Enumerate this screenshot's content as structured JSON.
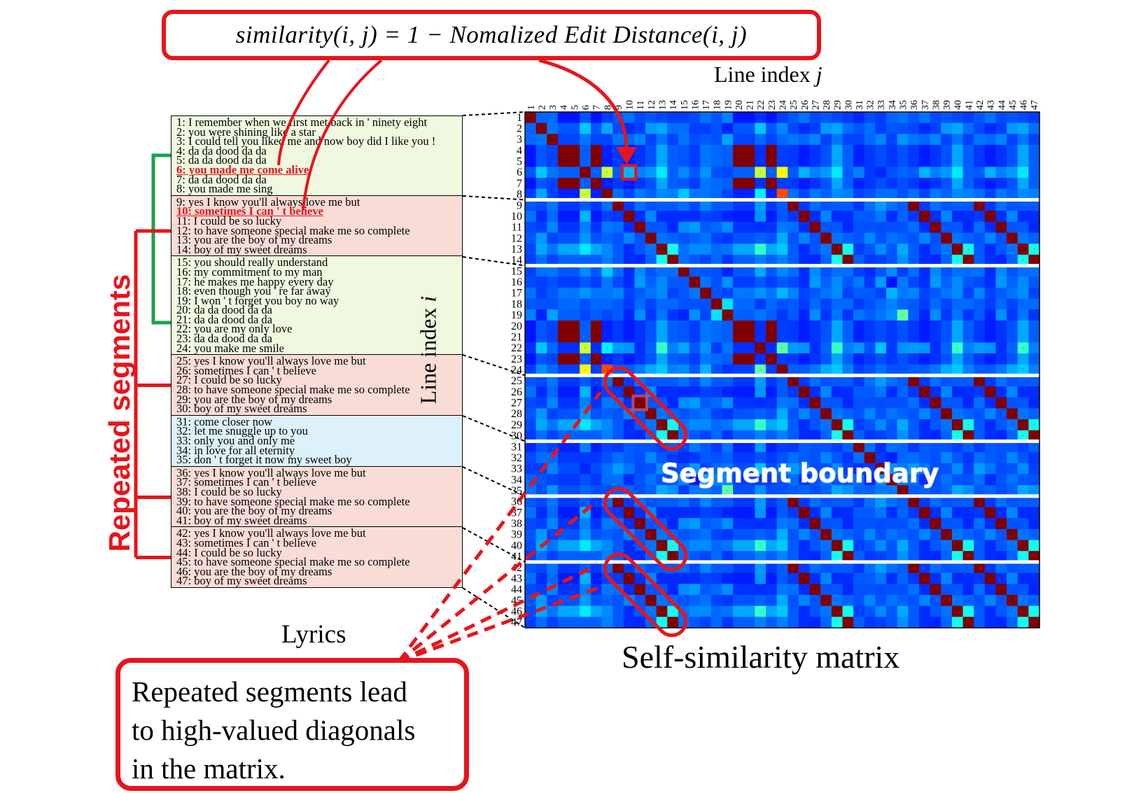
{
  "formula": "similarity(i, j) = 1 − Nomalized Edit Distance(i, j)",
  "col_axis": {
    "label": "Line index ",
    "var": "j"
  },
  "row_axis": {
    "label": "Line index ",
    "var": "i"
  },
  "lyrics_title": "Lyrics",
  "matrix_title": "Self-similarity matrix",
  "repeated_label": "Repeated segments",
  "boundary_label": "Segment boundary",
  "note_lines": [
    "Repeated segments lead",
    "to high-valued diagonals",
    "in the matrix."
  ],
  "colors": {
    "accent": "#e8141b",
    "bracket_green": "#1aa34a"
  },
  "segments": [
    {
      "bg": "#eef9df",
      "lines": [
        {
          "text": "1: I remember when we first met back in ' ninety eight"
        },
        {
          "text": "2: you were shining like a star"
        },
        {
          "text": "3: I could tell you liked me and now boy did I like you !"
        },
        {
          "text": "4: da da dood da da"
        },
        {
          "text": "5: da da dood da da"
        },
        {
          "text": "6: you made me come alive",
          "highlight": true
        },
        {
          "text": "7: da da dood da da"
        },
        {
          "text": "8: you made me sing"
        }
      ]
    },
    {
      "bg": "#fadcd6",
      "lines": [
        {
          "text": "9: yes I know you'll always love me but"
        },
        {
          "text": "10: sometimes I can ' t believe",
          "highlight": true
        },
        {
          "text": "11: I could be so lucky"
        },
        {
          "text": "12: to have someone special make me so complete"
        },
        {
          "text": "13: you are the boy of my dreams"
        },
        {
          "text": "14: boy of my sweet dreams"
        }
      ]
    },
    {
      "bg": "#eef9df",
      "lines": [
        {
          "text": "15: you should really understand"
        },
        {
          "text": "16: my commitment to my man"
        },
        {
          "text": "17: he makes me happy every day"
        },
        {
          "text": "18: even though you ' re far away"
        },
        {
          "text": "19: I won ' t forget you boy no way"
        },
        {
          "text": "20: da da dood da da"
        },
        {
          "text": "21: da da dood da da"
        },
        {
          "text": "22: you are my only love"
        },
        {
          "text": "23: da da dood da da"
        },
        {
          "text": "24: you make me smile"
        }
      ]
    },
    {
      "bg": "#fadcd6",
      "lines": [
        {
          "text": "25: yes I know you'll always love me but"
        },
        {
          "text": "26: sometimes I can ' t believe"
        },
        {
          "text": "27: I could be so lucky"
        },
        {
          "text": "28: to have someone special make me so complete"
        },
        {
          "text": "29: you are the boy of my dreams"
        },
        {
          "text": "30: boy of my sweet dreams"
        }
      ]
    },
    {
      "bg": "#ddf1fb",
      "lines": [
        {
          "text": "31: come closer now"
        },
        {
          "text": "32: let me snuggle up to you"
        },
        {
          "text": "33: only you and only me"
        },
        {
          "text": "34: in love for all eternity"
        },
        {
          "text": "35: don ' t forget it now my sweet boy"
        }
      ]
    },
    {
      "bg": "#fadcd6",
      "lines": [
        {
          "text": "36: yes I know you'll always love me but"
        },
        {
          "text": "37: sometimes I can ' t believe"
        },
        {
          "text": "38: I could be so lucky"
        },
        {
          "text": "39: to have someone special make me so complete"
        },
        {
          "text": "40: you are the boy of my dreams"
        },
        {
          "text": "41: boy of my sweet dreams"
        }
      ]
    },
    {
      "bg": "#fadcd6",
      "lines": [
        {
          "text": "42: yes I know you'll always love me but"
        },
        {
          "text": "43: sometimes I can ' t believe"
        },
        {
          "text": "44: I could be so lucky"
        },
        {
          "text": "45: to have someone special make me so complete"
        },
        {
          "text": "46: you are the boy of my dreams"
        },
        {
          "text": "47: boy of my sweet dreams"
        }
      ]
    }
  ]
}
